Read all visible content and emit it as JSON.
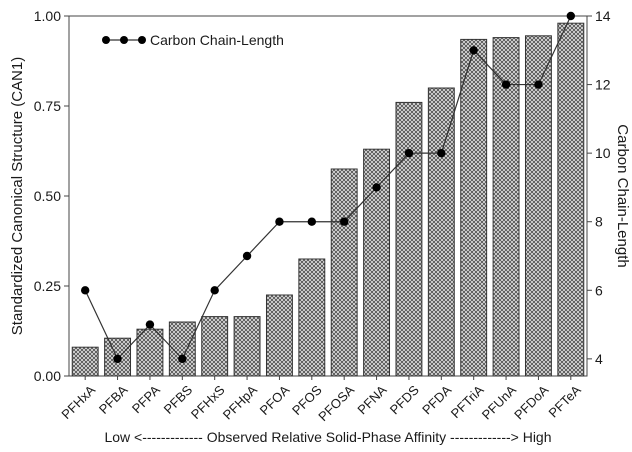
{
  "chart_data": {
    "type": "bar",
    "categories": [
      "PFHxA",
      "PFBA",
      "PFPA",
      "PFBS",
      "PFHxS",
      "PFHpA",
      "PFOA",
      "PFOS",
      "PFOSA",
      "PFNA",
      "PFDS",
      "PFDA",
      "PFTriA",
      "PFUnA",
      "PFDoA",
      "PFTeA"
    ],
    "series": [
      {
        "name": "",
        "kind": "bar",
        "axis": "left",
        "pattern": "crosshatch",
        "values": [
          0.08,
          0.105,
          0.13,
          0.15,
          0.165,
          0.165,
          0.225,
          0.325,
          0.575,
          0.63,
          0.76,
          0.8,
          0.935,
          0.94,
          0.945,
          0.98
        ]
      },
      {
        "name": "Carbon Chain-Length",
        "kind": "line",
        "axis": "right",
        "marker": "circle",
        "values": [
          6,
          4,
          5,
          4,
          6,
          7,
          8,
          8,
          8,
          9,
          10,
          10,
          13,
          12,
          12,
          14
        ]
      }
    ],
    "ylabel": "Standardized Canonical Structure (CAN1)",
    "y2label": "Carbon Chain-Length",
    "xlabel": "Low <------------- Observed Relative Solid-Phase Affinity -------------> High",
    "ylim": [
      0,
      1.0
    ],
    "y2lim": [
      3.5,
      14
    ],
    "yticks": [
      "0.00",
      "0.25",
      "0.50",
      "0.75",
      "1.00"
    ],
    "y2ticks": [
      "4",
      "6",
      "8",
      "10",
      "12",
      "14"
    ],
    "grid": false,
    "legend_position": "top-left",
    "colors": {
      "bar_fill": "#9a9a9a",
      "bar_stroke": "#333333",
      "line": "#333333",
      "marker": "#000000"
    }
  }
}
